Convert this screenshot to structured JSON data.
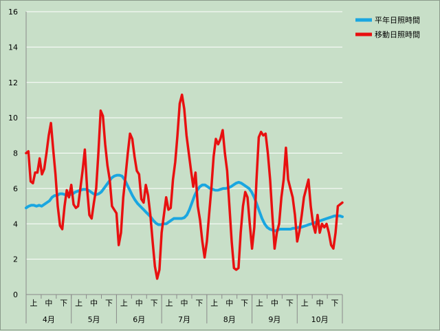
{
  "chart_data": {
    "type": "line",
    "ylim": [
      0,
      16
    ],
    "yticks": [
      0,
      2,
      4,
      6,
      8,
      10,
      12,
      14,
      16
    ],
    "xlabel": "",
    "ylabel": "",
    "title": "",
    "grid": true,
    "legend_position": "top-right",
    "months": [
      "4月",
      "5月",
      "6月",
      "7月",
      "8月",
      "9月",
      "10月"
    ],
    "decade_labels": [
      "上",
      "中",
      "下"
    ],
    "series": [
      {
        "name": "平年日照時間",
        "color": "#1aa6e0",
        "values": [
          4.9,
          5.0,
          5.05,
          5.05,
          5.0,
          5.05,
          5.0,
          5.1,
          5.2,
          5.3,
          5.5,
          5.6,
          5.6,
          5.7,
          5.7,
          5.65,
          5.6,
          5.65,
          5.7,
          5.8,
          5.85,
          5.9,
          5.95,
          5.95,
          5.9,
          5.8,
          5.7,
          5.65,
          5.7,
          5.8,
          6.0,
          6.2,
          6.4,
          6.6,
          6.7,
          6.75,
          6.75,
          6.7,
          6.5,
          6.2,
          5.9,
          5.6,
          5.35,
          5.15,
          5.0,
          4.85,
          4.7,
          4.55,
          4.4,
          4.2,
          4.05,
          3.95,
          3.95,
          4.0,
          4.0,
          4.1,
          4.2,
          4.3,
          4.3,
          4.3,
          4.3,
          4.35,
          4.5,
          4.8,
          5.2,
          5.6,
          5.9,
          6.1,
          6.2,
          6.2,
          6.1,
          6.0,
          5.95,
          5.9,
          5.9,
          5.95,
          6.0,
          6.0,
          6.05,
          6.1,
          6.2,
          6.3,
          6.35,
          6.3,
          6.2,
          6.1,
          6.0,
          5.8,
          5.5,
          5.1,
          4.7,
          4.3,
          4.0,
          3.8,
          3.7,
          3.65,
          3.6,
          3.65,
          3.7,
          3.7,
          3.7,
          3.7,
          3.7,
          3.75,
          3.75,
          3.8,
          3.8,
          3.85,
          3.9,
          3.95,
          4.0,
          4.05,
          4.1,
          4.15,
          4.2,
          4.25,
          4.3,
          4.35,
          4.4,
          4.45,
          4.45,
          4.45,
          4.4
        ]
      },
      {
        "name": "移動日照時間",
        "color": "#e81010",
        "values": [
          8.0,
          8.1,
          6.4,
          6.3,
          6.9,
          6.9,
          7.7,
          6.8,
          7.1,
          8.0,
          9.0,
          9.7,
          8.2,
          6.8,
          5.0,
          3.9,
          3.7,
          5.0,
          5.9,
          5.5,
          6.2,
          5.1,
          4.9,
          5.0,
          6.0,
          7.0,
          8.2,
          6.0,
          4.5,
          4.3,
          5.2,
          6.0,
          8.0,
          10.4,
          10.1,
          8.5,
          7.3,
          6.5,
          5.0,
          4.8,
          4.6,
          2.8,
          3.5,
          5.5,
          6.7,
          8.0,
          9.1,
          8.8,
          7.8,
          7.0,
          6.8,
          5.4,
          5.2,
          6.2,
          5.6,
          4.5,
          3.0,
          1.6,
          0.9,
          1.4,
          3.5,
          4.5,
          5.5,
          4.8,
          4.9,
          6.5,
          7.5,
          9.0,
          10.8,
          11.3,
          10.5,
          9.0,
          8.0,
          7.0,
          6.1,
          6.9,
          5.0,
          4.2,
          3.0,
          2.1,
          3.0,
          4.5,
          6.0,
          7.8,
          8.8,
          8.5,
          8.8,
          9.3,
          8.0,
          7.0,
          5.0,
          3.0,
          1.5,
          1.4,
          1.5,
          3.5,
          5.0,
          5.8,
          5.5,
          4.0,
          2.6,
          3.8,
          6.5,
          8.9,
          9.2,
          9.0,
          9.1,
          8.0,
          6.5,
          4.5,
          2.6,
          3.5,
          4.0,
          5.5,
          6.5,
          8.3,
          6.5,
          6.0,
          5.5,
          4.5,
          3.0,
          3.6,
          4.5,
          5.5,
          6.0,
          6.5,
          5.0,
          4.0,
          3.5,
          4.5,
          3.5,
          4.0,
          3.8,
          4.0,
          3.5,
          2.8,
          2.6,
          3.5,
          5.0,
          5.1,
          5.2
        ]
      }
    ]
  }
}
